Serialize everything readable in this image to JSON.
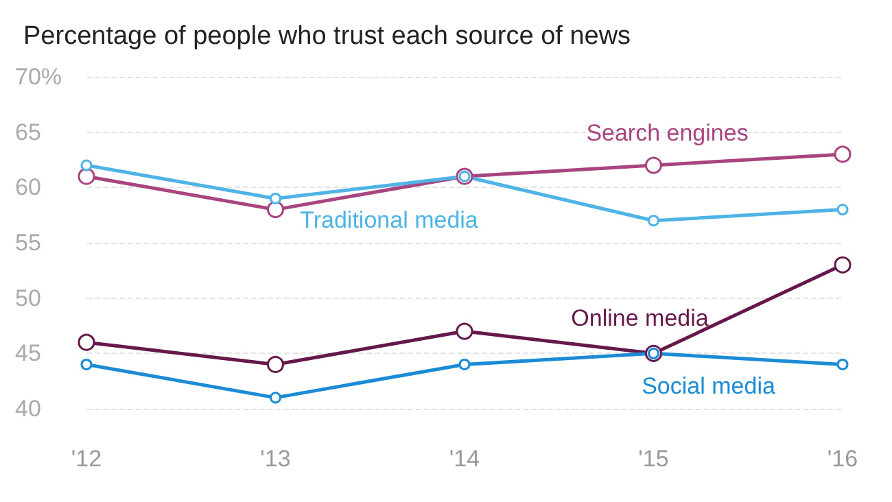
{
  "chart_data": {
    "type": "line",
    "title": "Percentage of people who trust each source of news",
    "categories": [
      "'12",
      "'13",
      "'14",
      "'15",
      "'16"
    ],
    "series": [
      {
        "name": "Search engines",
        "color": "#a8447f",
        "values": [
          61,
          58,
          61,
          62,
          63
        ]
      },
      {
        "name": "Traditional media",
        "color": "#4fb3e6",
        "values": [
          62,
          59,
          61,
          57,
          58
        ]
      },
      {
        "name": "Online media",
        "color": "#65194a",
        "values": [
          46,
          44,
          47,
          45,
          53
        ]
      },
      {
        "name": "Social media",
        "color": "#1b8bd6",
        "values": [
          44,
          41,
          44,
          45,
          44
        ]
      }
    ],
    "ylim": [
      40,
      70
    ],
    "yticks": [
      {
        "value": 40,
        "label": "40"
      },
      {
        "value": 45,
        "label": "45"
      },
      {
        "value": 50,
        "label": "50"
      },
      {
        "value": 55,
        "label": "55"
      },
      {
        "value": 60,
        "label": "60"
      },
      {
        "value": 65,
        "label": "65"
      },
      {
        "value": 70,
        "label": "70%"
      }
    ],
    "grid": "y",
    "marker": "circle",
    "line_style": "solid"
  }
}
